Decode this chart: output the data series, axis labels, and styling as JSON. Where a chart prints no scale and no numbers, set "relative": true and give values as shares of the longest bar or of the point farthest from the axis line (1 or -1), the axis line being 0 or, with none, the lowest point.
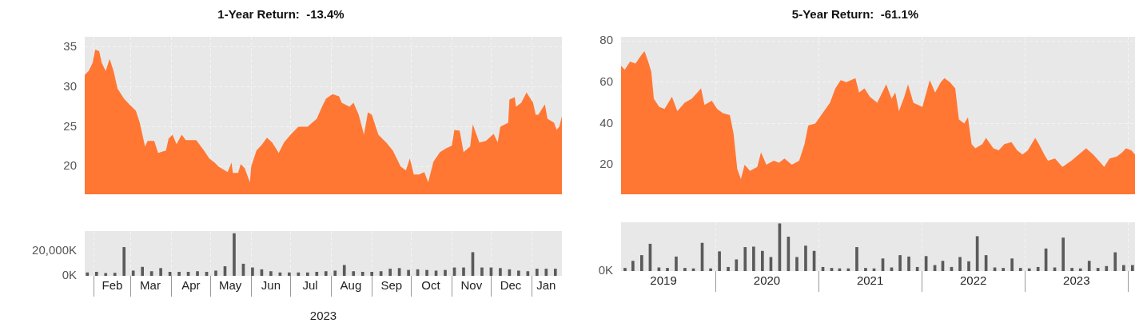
{
  "chart_data": [
    {
      "type": "area",
      "title": "1-Year Return:  -13.4%",
      "color": "#ff7733",
      "grid": true,
      "tick_labels": "y",
      "xlim": [
        "2023-01-25",
        "2024-01-24"
      ],
      "xticks": [
        {
          "value": "2023-02-01",
          "label": null
        },
        {
          "value": "2023-03-01",
          "label": null
        },
        {
          "value": "2023-04-01",
          "label": null
        },
        {
          "value": "2023-05-01",
          "label": null
        },
        {
          "value": "2023-06-01",
          "label": null
        },
        {
          "value": "2023-07-01",
          "label": null
        },
        {
          "value": "2023-08-01",
          "label": null
        },
        {
          "value": "2023-09-01",
          "label": null
        },
        {
          "value": "2023-10-01",
          "label": null
        },
        {
          "value": "2023-11-01",
          "label": null
        },
        {
          "value": "2023-12-01",
          "label": null
        },
        {
          "value": "2024-01-01",
          "label": null
        }
      ],
      "ylim": [
        16.5,
        36.3
      ],
      "yticks": [
        20,
        25,
        30,
        35
      ],
      "x": [
        "2023-01-25",
        "2023-01-28",
        "2023-01-31",
        "2023-02-02",
        "2023-02-05",
        "2023-02-07",
        "2023-02-10",
        "2023-02-13",
        "2023-02-16",
        "2023-02-19",
        "2023-02-24",
        "2023-02-28",
        "2023-03-05",
        "2023-03-08",
        "2023-03-12",
        "2023-03-14",
        "2023-03-19",
        "2023-03-22",
        "2023-03-28",
        "2023-03-30",
        "2023-04-02",
        "2023-04-05",
        "2023-04-09",
        "2023-04-12",
        "2023-04-20",
        "2023-04-26",
        "2023-04-30",
        "2023-05-04",
        "2023-05-07",
        "2023-05-14",
        "2023-05-17",
        "2023-05-18",
        "2023-05-22",
        "2023-05-24",
        "2023-05-27",
        "2023-05-31",
        "2023-06-01",
        "2023-06-05",
        "2023-06-09",
        "2023-06-13",
        "2023-06-17",
        "2023-06-22",
        "2023-06-26",
        "2023-07-01",
        "2023-07-07",
        "2023-07-14",
        "2023-07-21",
        "2023-07-25",
        "2023-07-28",
        "2023-08-02",
        "2023-08-07",
        "2023-08-09",
        "2023-08-15",
        "2023-08-18",
        "2023-08-22",
        "2023-08-26",
        "2023-08-29",
        "2023-09-01",
        "2023-09-06",
        "2023-09-12",
        "2023-09-17",
        "2023-09-23",
        "2023-09-27",
        "2023-09-30",
        "2023-10-03",
        "2023-10-07",
        "2023-10-11",
        "2023-10-14",
        "2023-10-18",
        "2023-10-23",
        "2023-10-28",
        "2023-11-01",
        "2023-11-03",
        "2023-11-07",
        "2023-11-10",
        "2023-11-15",
        "2023-11-17",
        "2023-11-22",
        "2023-11-27",
        "2023-12-03",
        "2023-12-06",
        "2023-12-08",
        "2023-12-14",
        "2023-12-15",
        "2023-12-19",
        "2023-12-20",
        "2023-12-24",
        "2023-12-28",
        "2024-01-02",
        "2024-01-04",
        "2024-01-06",
        "2024-01-11",
        "2024-01-13",
        "2024-01-18",
        "2024-01-20",
        "2024-01-22",
        "2024-01-24"
      ],
      "values": [
        31.5,
        32,
        33,
        34.7,
        34.5,
        33,
        32,
        33.5,
        32,
        29.8,
        28.5,
        27.8,
        27,
        25.5,
        22.5,
        23.2,
        23.2,
        21.7,
        22,
        23.5,
        24,
        22.8,
        24,
        23.3,
        23.3,
        22,
        21,
        20.5,
        20,
        19.3,
        20.5,
        19.2,
        19.2,
        20.3,
        19.8,
        18,
        20,
        22,
        22.7,
        23.6,
        23,
        21.7,
        23,
        24,
        25,
        25,
        26,
        27.5,
        28.5,
        29.1,
        28.8,
        28,
        27.5,
        28,
        26.5,
        24,
        26.8,
        26.5,
        24,
        23,
        22,
        20,
        19.5,
        21,
        19,
        19,
        19.3,
        18,
        20.6,
        21.8,
        22.3,
        22.6,
        24.6,
        24.5,
        21.8,
        22.5,
        25.3,
        23,
        23.2,
        24.1,
        23,
        25,
        25.5,
        28.4,
        28.7,
        27.5,
        28,
        29.3,
        28,
        26.5,
        26.5,
        27.8,
        26,
        25.5,
        24.6,
        25,
        26.3
      ]
    },
    {
      "type": "bar",
      "xlabel": "2023",
      "color": "#5a5a5a",
      "grid": "x",
      "xlim": [
        "2023-01-25",
        "2024-01-24"
      ],
      "xticks": [
        {
          "value": "2023-02-01",
          "label": null
        },
        {
          "value": "2023-02-15",
          "label": "Feb"
        },
        {
          "value": "2023-03-01",
          "label": null
        },
        {
          "value": "2023-03-16",
          "label": "Mar"
        },
        {
          "value": "2023-04-01",
          "label": null
        },
        {
          "value": "2023-04-16",
          "label": "Apr"
        },
        {
          "value": "2023-05-01",
          "label": null
        },
        {
          "value": "2023-05-16",
          "label": "May"
        },
        {
          "value": "2023-06-01",
          "label": null
        },
        {
          "value": "2023-06-16",
          "label": "Jun"
        },
        {
          "value": "2023-07-01",
          "label": null
        },
        {
          "value": "2023-07-16",
          "label": "Jul"
        },
        {
          "value": "2023-08-01",
          "label": null
        },
        {
          "value": "2023-08-16",
          "label": "Aug"
        },
        {
          "value": "2023-09-01",
          "label": null
        },
        {
          "value": "2023-09-16",
          "label": "Sep"
        },
        {
          "value": "2023-10-01",
          "label": null
        },
        {
          "value": "2023-10-16",
          "label": "Oct"
        },
        {
          "value": "2023-11-01",
          "label": null
        },
        {
          "value": "2023-11-16",
          "label": "Nov"
        },
        {
          "value": "2023-12-01",
          "label": null
        },
        {
          "value": "2023-12-16",
          "label": "Dec"
        },
        {
          "value": "2024-01-01",
          "label": null
        },
        {
          "value": "2024-01-12",
          "label": "Jan"
        }
      ],
      "ylim": [
        0,
        36000
      ],
      "yticks": [
        {
          "value": 0,
          "label": "0K"
        },
        {
          "value": 20000,
          "label": "20,000K"
        }
      ],
      "x": [
        "2023-01-27",
        "2023-02-03",
        "2023-02-10",
        "2023-02-17",
        "2023-02-24",
        "2023-03-03",
        "2023-03-10",
        "2023-03-17",
        "2023-03-24",
        "2023-03-31",
        "2023-04-07",
        "2023-04-14",
        "2023-04-21",
        "2023-04-28",
        "2023-05-05",
        "2023-05-12",
        "2023-05-19",
        "2023-05-26",
        "2023-06-02",
        "2023-06-09",
        "2023-06-16",
        "2023-06-23",
        "2023-06-30",
        "2023-07-07",
        "2023-07-14",
        "2023-07-21",
        "2023-07-28",
        "2023-08-04",
        "2023-08-11",
        "2023-08-18",
        "2023-08-25",
        "2023-09-01",
        "2023-09-08",
        "2023-09-15",
        "2023-09-22",
        "2023-09-29",
        "2023-10-06",
        "2023-10-13",
        "2023-10-20",
        "2023-10-27",
        "2023-11-03",
        "2023-11-10",
        "2023-11-17",
        "2023-11-24",
        "2023-12-01",
        "2023-12-08",
        "2023-12-15",
        "2023-12-22",
        "2023-12-29",
        "2024-01-05",
        "2024-01-12",
        "2024-01-19"
      ],
      "values": [
        2500,
        3000,
        2000,
        2200,
        22900,
        4000,
        7000,
        3500,
        6000,
        3000,
        3000,
        3000,
        3500,
        3000,
        4000,
        7500,
        34000,
        9500,
        6500,
        5000,
        3500,
        2500,
        2500,
        2500,
        2500,
        3000,
        3500,
        4000,
        8500,
        3500,
        3000,
        3000,
        3500,
        5500,
        6000,
        4500,
        5000,
        4500,
        4000,
        4500,
        6500,
        6500,
        18800,
        6500,
        6500,
        6000,
        5000,
        4000,
        3500,
        5500,
        5500,
        5500
      ]
    },
    {
      "type": "area",
      "title": "5-Year Return:  -61.1%",
      "color": "#ff7733",
      "grid": true,
      "tick_labels": "y",
      "xlim": [
        "2019-02-01",
        "2024-01-24"
      ],
      "xticks": [
        {
          "value": "2020-01-01",
          "label": null
        },
        {
          "value": "2021-01-01",
          "label": null
        },
        {
          "value": "2022-01-01",
          "label": null
        },
        {
          "value": "2023-01-01",
          "label": null
        },
        {
          "value": "2024-01-01",
          "label": null
        }
      ],
      "ylim": [
        5.7,
        82
      ],
      "yticks": [
        20,
        40,
        60,
        80
      ],
      "x": [
        "2019-02-01",
        "2019-02-14",
        "2019-03-05",
        "2019-03-24",
        "2019-04-13",
        "2019-04-25",
        "2019-05-08",
        "2019-05-19",
        "2019-05-28",
        "2019-06-16",
        "2019-07-05",
        "2019-07-31",
        "2019-08-19",
        "2019-09-14",
        "2019-10-09",
        "2019-10-29",
        "2019-11-11",
        "2019-11-23",
        "2019-12-19",
        "2020-01-07",
        "2020-01-27",
        "2020-02-21",
        "2020-03-05",
        "2020-03-18",
        "2020-03-31",
        "2020-04-13",
        "2020-05-02",
        "2020-05-28",
        "2020-06-10",
        "2020-06-29",
        "2020-07-25",
        "2020-08-13",
        "2020-09-01",
        "2020-09-27",
        "2020-10-23",
        "2020-11-11",
        "2020-11-24",
        "2020-12-19",
        "2021-01-14",
        "2021-02-09",
        "2021-02-28",
        "2021-03-19",
        "2021-04-08",
        "2021-05-10",
        "2021-05-23",
        "2021-06-11",
        "2021-06-30",
        "2021-07-26",
        "2021-08-27",
        "2021-09-15",
        "2021-09-28",
        "2021-10-11",
        "2021-10-30",
        "2021-11-12",
        "2021-12-01",
        "2022-01-02",
        "2022-01-28",
        "2022-02-16",
        "2022-03-08",
        "2022-03-21",
        "2022-04-09",
        "2022-04-28",
        "2022-05-11",
        "2022-05-30",
        "2022-06-12",
        "2022-06-25",
        "2022-07-08",
        "2022-08-02",
        "2022-08-15",
        "2022-09-10",
        "2022-09-29",
        "2022-10-19",
        "2022-11-13",
        "2022-12-03",
        "2022-12-22",
        "2023-01-10",
        "2023-02-05",
        "2023-02-18",
        "2023-03-09",
        "2023-03-22",
        "2023-04-16",
        "2023-05-12",
        "2023-06-13",
        "2023-07-09",
        "2023-08-04",
        "2023-08-29",
        "2023-09-24",
        "2023-10-07",
        "2023-10-26",
        "2023-11-21",
        "2023-12-10",
        "2023-12-23",
        "2024-01-11",
        "2024-01-24"
      ],
      "values": [
        68,
        66,
        70,
        69,
        73,
        75,
        70,
        65,
        52,
        48,
        47,
        53,
        46,
        50,
        52,
        55,
        57,
        49,
        51,
        47,
        45,
        44,
        35,
        18,
        13,
        20,
        17,
        19,
        26,
        20,
        22,
        21,
        23,
        20,
        22,
        30,
        39,
        40,
        45,
        50,
        57,
        61,
        60,
        62,
        55,
        57,
        53,
        50,
        59,
        52,
        55,
        46,
        53,
        59,
        50,
        48,
        61,
        55,
        60,
        62,
        60,
        57,
        42,
        40,
        43,
        30,
        28,
        30,
        33,
        28,
        27,
        30,
        31,
        27,
        25,
        27,
        33,
        30,
        25,
        22,
        23,
        19,
        22,
        25,
        28,
        25,
        21,
        19,
        23,
        24,
        26,
        28,
        27,
        25
      ]
    },
    {
      "type": "bar",
      "relative": true,
      "color": "#5a5a5a",
      "grid": "x",
      "xlim": [
        "2019-02-01",
        "2024-01-24"
      ],
      "xticks": [
        {
          "value": "2019-07-01",
          "label": "2019"
        },
        {
          "value": "2020-01-01",
          "label": null
        },
        {
          "value": "2020-07-01",
          "label": "2020"
        },
        {
          "value": "2021-01-01",
          "label": null
        },
        {
          "value": "2021-07-01",
          "label": "2021"
        },
        {
          "value": "2022-01-01",
          "label": null
        },
        {
          "value": "2022-07-01",
          "label": "2022"
        },
        {
          "value": "2023-01-01",
          "label": null
        },
        {
          "value": "2023-07-01",
          "label": "2023"
        },
        {
          "value": "2024-01-01",
          "label": null
        }
      ],
      "annotations": [
        "0K"
      ],
      "x": [
        "2019-02-15",
        "2019-03-15",
        "2019-04-15",
        "2019-05-15",
        "2019-06-15",
        "2019-07-15",
        "2019-08-15",
        "2019-09-15",
        "2019-10-15",
        "2019-11-15",
        "2019-12-15",
        "2020-01-15",
        "2020-02-15",
        "2020-03-15",
        "2020-04-15",
        "2020-05-15",
        "2020-06-15",
        "2020-07-15",
        "2020-08-15",
        "2020-09-15",
        "2020-10-15",
        "2020-11-15",
        "2020-12-15",
        "2021-01-15",
        "2021-02-15",
        "2021-03-15",
        "2021-04-15",
        "2021-05-15",
        "2021-06-15",
        "2021-07-15",
        "2021-08-15",
        "2021-09-15",
        "2021-10-15",
        "2021-11-15",
        "2021-12-15",
        "2022-01-15",
        "2022-02-15",
        "2022-03-15",
        "2022-04-15",
        "2022-05-15",
        "2022-06-15",
        "2022-07-15",
        "2022-08-15",
        "2022-09-15",
        "2022-10-15",
        "2022-11-15",
        "2022-12-15",
        "2023-01-15",
        "2023-02-15",
        "2023-03-15",
        "2023-04-15",
        "2023-05-15",
        "2023-06-15",
        "2023-07-15",
        "2023-08-15",
        "2023-09-15",
        "2023-10-15",
        "2023-11-15",
        "2023-12-15",
        "2024-01-15"
      ],
      "values": [
        0.06,
        0.21,
        0.33,
        0.57,
        0.07,
        0.06,
        0.3,
        0.06,
        0.05,
        0.59,
        0.05,
        0.41,
        0.08,
        0.24,
        0.5,
        0.51,
        0.42,
        0.29,
        1,
        0.72,
        0.29,
        0.53,
        0.42,
        0.08,
        0.06,
        0.05,
        0.05,
        0.5,
        0.06,
        0.05,
        0.26,
        0.07,
        0.33,
        0.3,
        0.08,
        0.31,
        0.12,
        0.21,
        0.08,
        0.29,
        0.2,
        0.73,
        0.33,
        0.07,
        0.06,
        0.26,
        0.06,
        0.05,
        0.08,
        0.47,
        0.07,
        0.7,
        0.06,
        0.05,
        0.21,
        0.06,
        0.1,
        0.39,
        0.12,
        0.12
      ]
    }
  ]
}
